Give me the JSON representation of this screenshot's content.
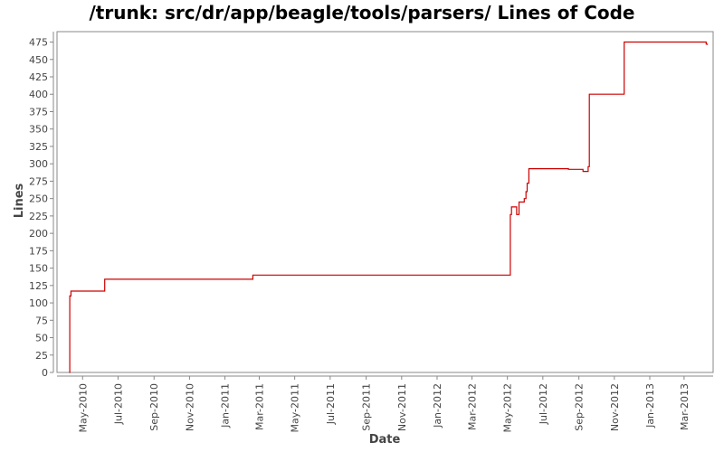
{
  "chart_data": {
    "type": "line",
    "title": "/trunk: src/dr/app/beagle/tools/parsers/ Lines of Code",
    "xlabel": "Date",
    "ylabel": "Lines",
    "ylim": [
      0,
      490
    ],
    "xlim": [
      "2010-03-18",
      "2013-04-20"
    ],
    "y_ticks": [
      0,
      25,
      50,
      75,
      100,
      125,
      150,
      175,
      200,
      225,
      250,
      275,
      300,
      325,
      350,
      375,
      400,
      425,
      450,
      475
    ],
    "x_ticks": [
      {
        "label": "May-2010",
        "date": "2010-05-01"
      },
      {
        "label": "Jul-2010",
        "date": "2010-07-01"
      },
      {
        "label": "Sep-2010",
        "date": "2010-09-01"
      },
      {
        "label": "Nov-2010",
        "date": "2010-11-01"
      },
      {
        "label": "Jan-2011",
        "date": "2011-01-01"
      },
      {
        "label": "Mar-2011",
        "date": "2011-03-01"
      },
      {
        "label": "May-2011",
        "date": "2011-05-01"
      },
      {
        "label": "Jul-2011",
        "date": "2011-07-01"
      },
      {
        "label": "Sep-2011",
        "date": "2011-09-01"
      },
      {
        "label": "Nov-2011",
        "date": "2011-11-01"
      },
      {
        "label": "Jan-2012",
        "date": "2012-01-01"
      },
      {
        "label": "Mar-2012",
        "date": "2012-03-01"
      },
      {
        "label": "May-2012",
        "date": "2012-05-01"
      },
      {
        "label": "Jul-2012",
        "date": "2012-07-01"
      },
      {
        "label": "Sep-2012",
        "date": "2012-09-01"
      },
      {
        "label": "Nov-2012",
        "date": "2012-11-01"
      },
      {
        "label": "Jan-2013",
        "date": "2013-01-01"
      },
      {
        "label": "Mar-2013",
        "date": "2013-03-01"
      }
    ],
    "step": true,
    "line_color": "#cc0000",
    "grid": false,
    "series": [
      {
        "x": [
          "2010-04-08",
          "2010-04-09",
          "2010-04-11",
          "2010-06-08",
          "2011-02-18",
          "2012-05-06",
          "2012-05-08",
          "2012-05-17",
          "2012-05-21",
          "2012-05-30",
          "2012-06-02",
          "2012-06-04",
          "2012-06-07",
          "2012-06-10",
          "2012-06-12",
          "2012-08-14",
          "2012-09-08",
          "2012-09-17",
          "2012-09-19",
          "2012-11-18",
          "2013-04-08",
          "2013-04-10"
        ],
        "y": [
          0,
          110,
          117,
          134,
          140,
          227,
          238,
          227,
          245,
          250,
          260,
          272,
          293,
          293,
          293,
          292,
          289,
          296,
          400,
          475,
          472,
          471
        ]
      }
    ]
  }
}
